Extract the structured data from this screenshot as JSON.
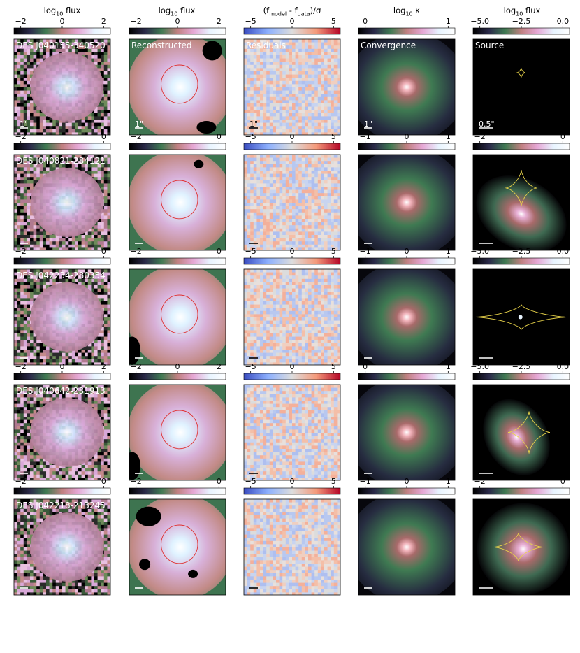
{
  "figure": {
    "column_titles": [
      "log10 flux",
      "log10 flux",
      "(f_model - f_data)/σ",
      "log10 κ",
      "log10 flux"
    ]
  },
  "colors": {
    "residual_cmap": [
      "#3a4cc0",
      "#8db0fe",
      "#dddddd",
      "#f49a7b",
      "#b40426"
    ],
    "flux_cmap": [
      "#000000",
      "#2b2a4a",
      "#3f7a52",
      "#c08080",
      "#e6a8d6",
      "#e8f4ff",
      "#ffffff"
    ],
    "critical_curve": "#e03030",
    "caustic": "#e8d34a",
    "mask": "#000000"
  },
  "chart_data": [
    {
      "name": "DES J040155-340520",
      "type": "heatmap",
      "panels": [
        {
          "kind": "data",
          "label": "DES J040155-340520",
          "cbar_ticks": [
            "−2",
            "0",
            "2"
          ],
          "scale_bar": "1\""
        },
        {
          "kind": "reconstructed",
          "label": "Reconstructed",
          "cbar_ticks": [
            "−2",
            "0",
            "2"
          ],
          "scale_bar": "1\""
        },
        {
          "kind": "residuals",
          "label": "Residuals",
          "cbar_ticks": [
            "−5",
            "0",
            "5"
          ],
          "scale_bar": "1\""
        },
        {
          "kind": "convergence",
          "label": "Convergence",
          "cbar_ticks": [
            "0",
            "1"
          ],
          "scale_bar": "1\""
        },
        {
          "kind": "source",
          "label": "Source",
          "cbar_ticks": [
            "−5.0",
            "−2.5",
            "0.0"
          ],
          "scale_bar": "0.5\""
        }
      ]
    },
    {
      "name": "DES J040821-284121",
      "type": "heatmap",
      "panels": [
        {
          "kind": "data",
          "label": "DES J040821-284121",
          "cbar_ticks": [
            "−2",
            "0"
          ],
          "scale_bar": ""
        },
        {
          "kind": "reconstructed",
          "label": "",
          "cbar_ticks": [
            "−2",
            "0"
          ],
          "scale_bar": ""
        },
        {
          "kind": "residuals",
          "label": "",
          "cbar_ticks": [
            "−5",
            "0",
            "5"
          ],
          "scale_bar": ""
        },
        {
          "kind": "convergence",
          "label": "",
          "cbar_ticks": [
            "−1",
            "0",
            "1"
          ],
          "scale_bar": ""
        },
        {
          "kind": "source",
          "label": "",
          "cbar_ticks": [
            "−2",
            "0"
          ],
          "scale_bar": ""
        }
      ]
    },
    {
      "name": "DES J042234-280354",
      "type": "heatmap",
      "panels": [
        {
          "kind": "data",
          "label": "DES J042234-280354",
          "cbar_ticks": [
            "−2",
            "0"
          ],
          "scale_bar": ""
        },
        {
          "kind": "reconstructed",
          "label": "",
          "cbar_ticks": [
            "−2",
            "0"
          ],
          "scale_bar": ""
        },
        {
          "kind": "residuals",
          "label": "",
          "cbar_ticks": [
            "−5",
            "0",
            "5"
          ],
          "scale_bar": ""
        },
        {
          "kind": "convergence",
          "label": "",
          "cbar_ticks": [
            "−1",
            "0",
            "1"
          ],
          "scale_bar": ""
        },
        {
          "kind": "source",
          "label": "",
          "cbar_ticks": [
            "−5.0",
            "−2.5",
            "0.0"
          ],
          "scale_bar": ""
        }
      ]
    },
    {
      "name": "DES J040642-231913",
      "type": "heatmap",
      "panels": [
        {
          "kind": "data",
          "label": "DES J040642-231913",
          "cbar_ticks": [
            "−2",
            "0",
            "2"
          ],
          "scale_bar": ""
        },
        {
          "kind": "reconstructed",
          "label": "",
          "cbar_ticks": [
            "−2",
            "0",
            "2"
          ],
          "scale_bar": ""
        },
        {
          "kind": "residuals",
          "label": "",
          "cbar_ticks": [
            "−5",
            "0",
            "5"
          ],
          "scale_bar": ""
        },
        {
          "kind": "convergence",
          "label": "",
          "cbar_ticks": [
            "0",
            "1"
          ],
          "scale_bar": ""
        },
        {
          "kind": "source",
          "label": "",
          "cbar_ticks": [
            "−5.0",
            "−2.5",
            "0.0"
          ],
          "scale_bar": ""
        }
      ]
    },
    {
      "name": "DES J042218-213245",
      "type": "heatmap",
      "panels": [
        {
          "kind": "data",
          "label": "DES J042218-213245",
          "cbar_ticks": [
            "−2",
            "0"
          ],
          "scale_bar": ""
        },
        {
          "kind": "reconstructed",
          "label": "",
          "cbar_ticks": [
            "−2",
            "0"
          ],
          "scale_bar": ""
        },
        {
          "kind": "residuals",
          "label": "",
          "cbar_ticks": [
            "−5",
            "0",
            "5"
          ],
          "scale_bar": ""
        },
        {
          "kind": "convergence",
          "label": "",
          "cbar_ticks": [
            "−1",
            "0",
            "1"
          ],
          "scale_bar": ""
        },
        {
          "kind": "source",
          "label": "",
          "cbar_ticks": [
            "−2",
            "0"
          ],
          "scale_bar": ""
        }
      ]
    }
  ]
}
